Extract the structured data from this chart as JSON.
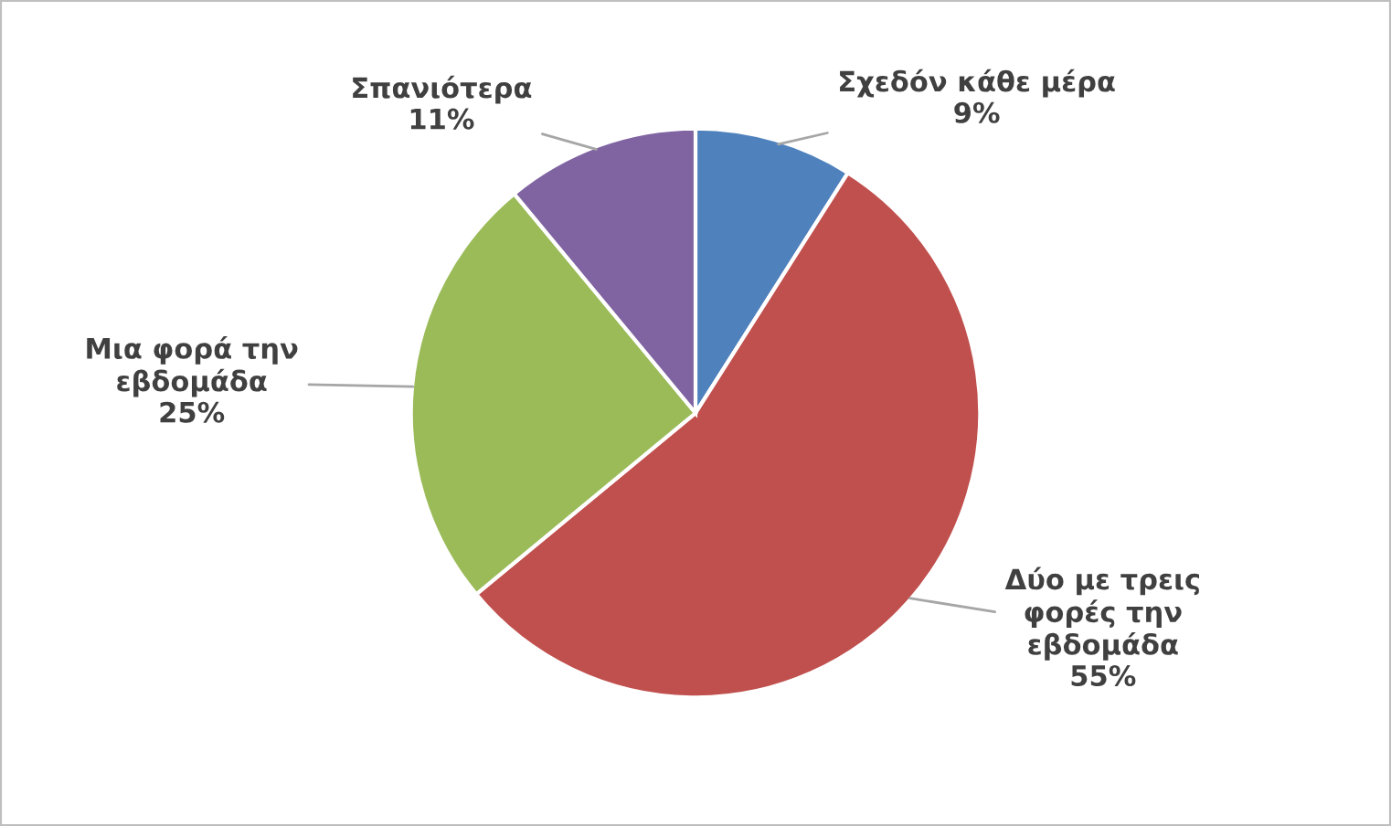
{
  "chart_data": {
    "type": "pie",
    "categories": [
      "Σχεδόν κάθε μέρα",
      "Δύο με τρεις φορές την εβδομάδα",
      "Μια φορά την εβδομάδα",
      "Σπανιότερα"
    ],
    "values": [
      9,
      55,
      25,
      11
    ],
    "value_labels": [
      "9%",
      "55%",
      "25%",
      "11%"
    ],
    "colors": [
      "#4f81bd",
      "#c0504d",
      "#9bbb59",
      "#8064a2"
    ],
    "legend": false
  }
}
